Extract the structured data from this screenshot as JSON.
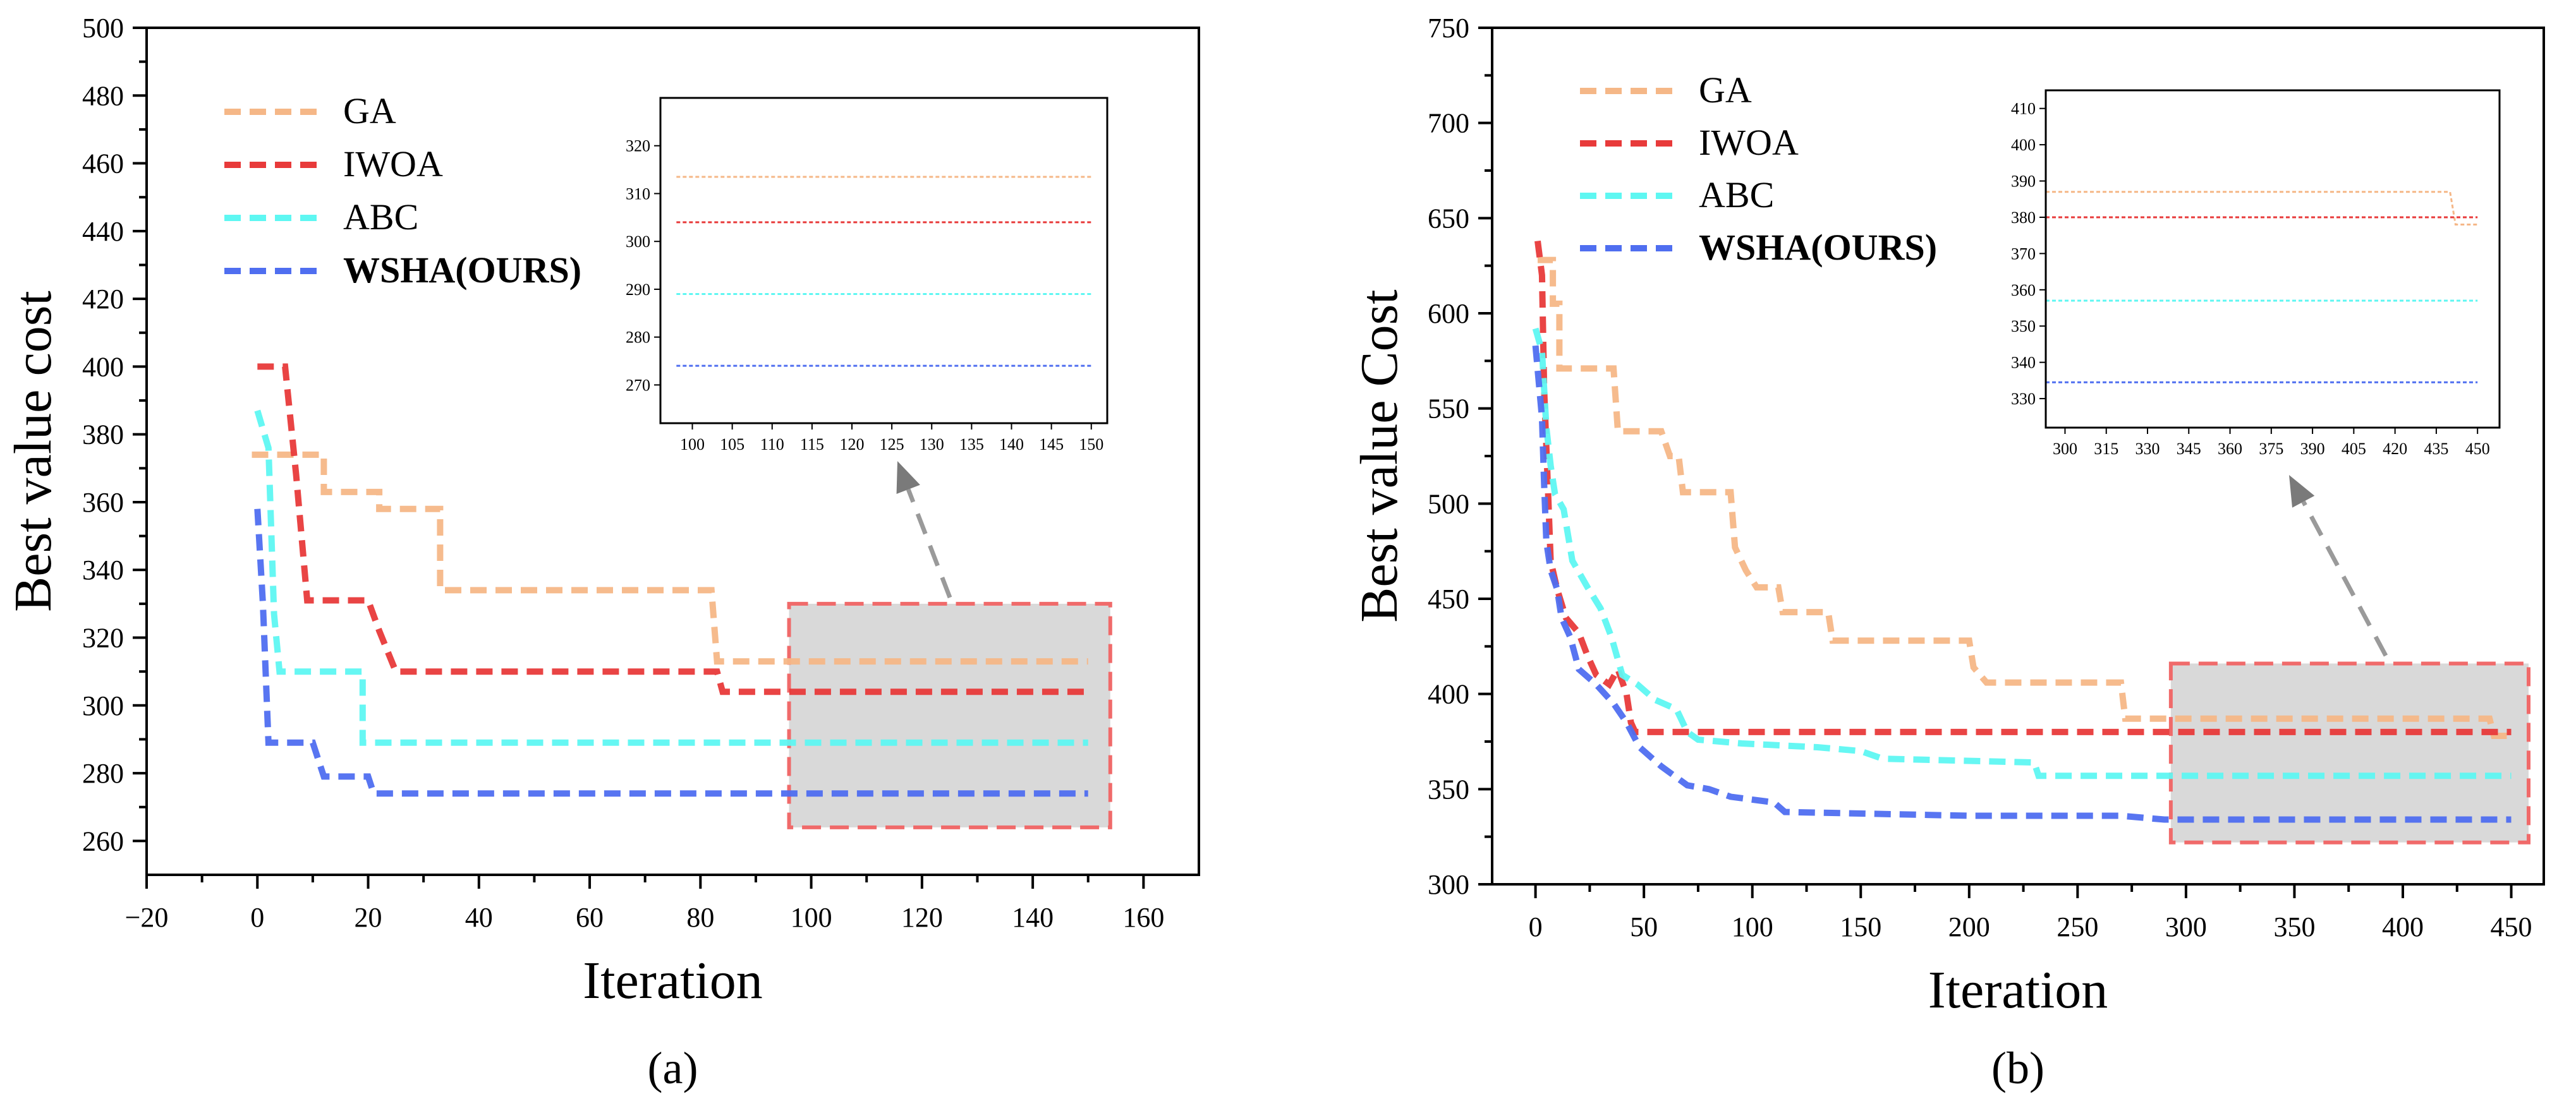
{
  "colors": {
    "GA": "#f5b787",
    "IWOA": "#e83a3a",
    "ABC": "#5ef7f2",
    "WSHA": "#4f6ef0",
    "zoom_fill": "#d9d9d9",
    "zoom_border": "#f06a6a",
    "arrow": "#9a9a9a"
  },
  "chart_data": [
    {
      "panel": "(a)",
      "type": "line",
      "xlabel": "Iteration",
      "ylabel": "Best value cost",
      "xlim": [
        -20,
        170
      ],
      "ylim": [
        250,
        500
      ],
      "xticks": [
        -20,
        0,
        20,
        40,
        60,
        80,
        100,
        120,
        140,
        160
      ],
      "xtick_labels": [
        "−20",
        "0",
        "20",
        "40",
        "60",
        "80",
        "100",
        "120",
        "140",
        "160"
      ],
      "yticks": [
        260,
        280,
        300,
        320,
        340,
        360,
        380,
        400,
        420,
        440,
        460,
        480,
        500
      ],
      "legend": [
        "GA",
        "IWOA",
        "ABC",
        "WSHA(OURS)"
      ],
      "series": [
        {
          "name": "GA",
          "key": "GA",
          "points": [
            [
              -1,
              374
            ],
            [
              7,
              374
            ],
            [
              12,
              374
            ],
            [
              12,
              363
            ],
            [
              22,
              363
            ],
            [
              22,
              358
            ],
            [
              33,
              358
            ],
            [
              33,
              334
            ],
            [
              82,
              334
            ],
            [
              83,
              313
            ],
            [
              150,
              313
            ]
          ]
        },
        {
          "name": "IWOA",
          "key": "IWOA",
          "points": [
            [
              0,
              400
            ],
            [
              5,
              400
            ],
            [
              7,
              368
            ],
            [
              9,
              331
            ],
            [
              20,
              331
            ],
            [
              22,
              322
            ],
            [
              25,
              310
            ],
            [
              83,
              310
            ],
            [
              84,
              304
            ],
            [
              150,
              304
            ]
          ]
        },
        {
          "name": "ABC",
          "key": "ABC",
          "points": [
            [
              0,
              387
            ],
            [
              2,
              376
            ],
            [
              3,
              327
            ],
            [
              4,
              310
            ],
            [
              19,
              310
            ],
            [
              19,
              289
            ],
            [
              150,
              289
            ]
          ]
        },
        {
          "name": "WSHA(OURS)",
          "key": "WSHA",
          "points": [
            [
              0,
              358
            ],
            [
              1,
              330
            ],
            [
              2,
              289
            ],
            [
              10,
              289
            ],
            [
              12,
              279
            ],
            [
              20,
              279
            ],
            [
              21,
              274
            ],
            [
              150,
              274
            ]
          ]
        }
      ],
      "zoom_box": {
        "x": [
          96,
          154
        ],
        "y": [
          264,
          330
        ]
      },
      "inset": {
        "xlim": [
          96,
          152
        ],
        "ylim": [
          262,
          330
        ],
        "xticks": [
          100,
          105,
          110,
          115,
          120,
          125,
          130,
          135,
          140,
          145,
          150
        ],
        "yticks": [
          270,
          280,
          290,
          300,
          310,
          320
        ],
        "series": [
          {
            "key": "GA",
            "y": 313.5
          },
          {
            "key": "IWOA",
            "y": 304
          },
          {
            "key": "ABC",
            "y": 289
          },
          {
            "key": "WSHA",
            "y": 274
          }
        ]
      }
    },
    {
      "panel": "(b)",
      "type": "line",
      "xlabel": "Iteration",
      "ylabel": "Best value Cost",
      "xlim": [
        -20,
        465
      ],
      "ylim": [
        300,
        750
      ],
      "xticks": [
        0,
        50,
        100,
        150,
        200,
        250,
        300,
        350,
        400,
        450
      ],
      "xtick_labels": [
        "0",
        "50",
        "100",
        "150",
        "200",
        "250",
        "300",
        "350",
        "400",
        "450"
      ],
      "yticks": [
        300,
        350,
        400,
        450,
        500,
        550,
        600,
        650,
        700,
        750
      ],
      "legend": [
        "GA",
        "IWOA",
        "ABC",
        "WSHA(OURS)"
      ],
      "series": [
        {
          "name": "GA",
          "key": "GA",
          "points": [
            [
              1,
              628
            ],
            [
              8,
              628
            ],
            [
              8,
              605
            ],
            [
              11,
              605
            ],
            [
              11,
              571
            ],
            [
              36,
              571
            ],
            [
              38,
              538
            ],
            [
              58,
              538
            ],
            [
              62,
              525
            ],
            [
              66,
              525
            ],
            [
              68,
              506
            ],
            [
              90,
              506
            ],
            [
              92,
              477
            ],
            [
              97,
              465
            ],
            [
              102,
              456
            ],
            [
              112,
              456
            ],
            [
              114,
              443
            ],
            [
              135,
              443
            ],
            [
              137,
              428
            ],
            [
              200,
              428
            ],
            [
              202,
              414
            ],
            [
              208,
              406
            ],
            [
              270,
              406
            ],
            [
              272,
              387
            ],
            [
              440,
              387
            ],
            [
              442,
              378
            ],
            [
              450,
              378
            ]
          ]
        },
        {
          "name": "IWOA",
          "key": "IWOA",
          "points": [
            [
              1,
              638
            ],
            [
              3,
              620
            ],
            [
              4,
              560
            ],
            [
              6,
              500
            ],
            [
              7,
              470
            ],
            [
              10,
              455
            ],
            [
              14,
              440
            ],
            [
              20,
              432
            ],
            [
              24,
              420
            ],
            [
              28,
              410
            ],
            [
              34,
              405
            ],
            [
              38,
              413
            ],
            [
              42,
              400
            ],
            [
              44,
              385
            ],
            [
              46,
              380
            ],
            [
              450,
              380
            ]
          ]
        },
        {
          "name": "ABC",
          "key": "ABC",
          "points": [
            [
              0,
              592
            ],
            [
              3,
              580
            ],
            [
              5,
              540
            ],
            [
              7,
              520
            ],
            [
              9,
              505
            ],
            [
              13,
              497
            ],
            [
              17,
              470
            ],
            [
              24,
              456
            ],
            [
              30,
              445
            ],
            [
              35,
              430
            ],
            [
              40,
              410
            ],
            [
              47,
              405
            ],
            [
              55,
              397
            ],
            [
              65,
              392
            ],
            [
              70,
              380
            ],
            [
              75,
              376
            ],
            [
              95,
              374
            ],
            [
              130,
              372
            ],
            [
              150,
              370
            ],
            [
              160,
              366
            ],
            [
              230,
              364
            ],
            [
              232,
              357
            ],
            [
              450,
              357
            ]
          ]
        },
        {
          "name": "WSHA(OURS)",
          "key": "WSHA",
          "points": [
            [
              0,
              583
            ],
            [
              3,
              545
            ],
            [
              4,
              510
            ],
            [
              5,
              480
            ],
            [
              7,
              465
            ],
            [
              10,
              455
            ],
            [
              12,
              440
            ],
            [
              16,
              430
            ],
            [
              20,
              413
            ],
            [
              28,
              405
            ],
            [
              36,
              395
            ],
            [
              42,
              385
            ],
            [
              48,
              372
            ],
            [
              58,
              362
            ],
            [
              70,
              352
            ],
            [
              80,
              350
            ],
            [
              90,
              346
            ],
            [
              110,
              343
            ],
            [
              115,
              338
            ],
            [
              200,
              336
            ],
            [
              270,
              336
            ],
            [
              290,
              334
            ],
            [
              450,
              334
            ]
          ]
        }
      ],
      "zoom_box": {
        "x": [
          293,
          458
        ],
        "y": [
          322,
          416
        ]
      },
      "inset": {
        "xlim": [
          293,
          458
        ],
        "ylim": [
          322,
          415
        ],
        "xticks": [
          300,
          315,
          330,
          345,
          360,
          375,
          390,
          405,
          420,
          435,
          450
        ],
        "yticks": [
          330,
          340,
          350,
          360,
          370,
          380,
          390,
          400,
          410
        ],
        "series": [
          {
            "key": "GA",
            "points": [
              [
                293,
                387
              ],
              [
                440,
                387
              ],
              [
                442,
                378
              ],
              [
                450,
                378
              ]
            ]
          },
          {
            "key": "IWOA",
            "points": [
              [
                293,
                380
              ],
              [
                450,
                380
              ]
            ]
          },
          {
            "key": "ABC",
            "points": [
              [
                293,
                357
              ],
              [
                450,
                357
              ]
            ]
          },
          {
            "key": "WSHA",
            "points": [
              [
                293,
                334.5
              ],
              [
                450,
                334.5
              ]
            ]
          }
        ]
      }
    }
  ]
}
